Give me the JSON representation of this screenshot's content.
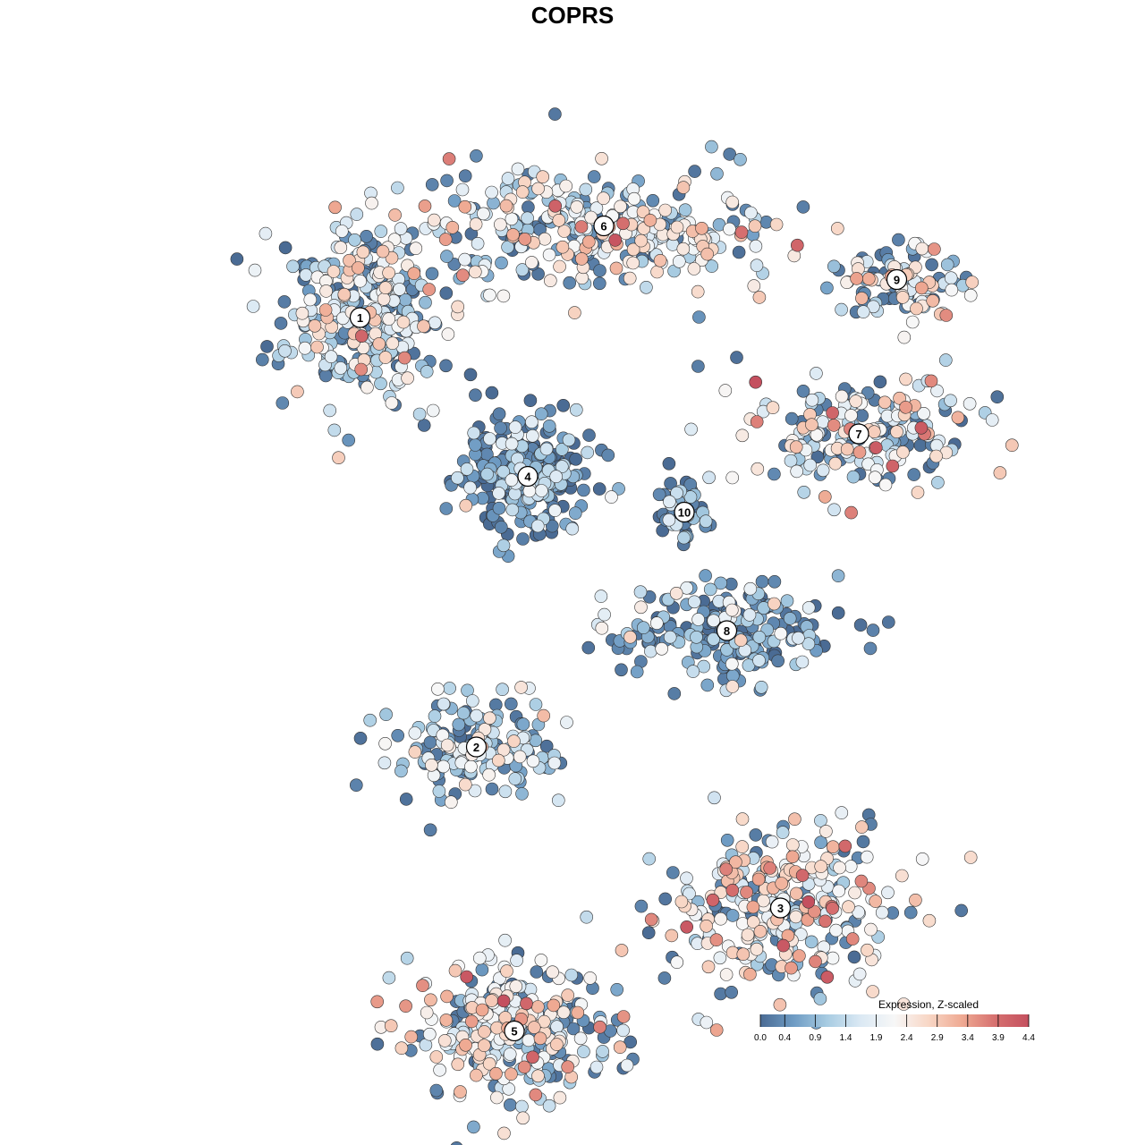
{
  "chart_data": {
    "type": "scatter",
    "title": "COPRS",
    "xlabel": "",
    "ylabel": "",
    "grid": false,
    "color_scale": {
      "title": "Expression, Z-scaled",
      "min": 0.0,
      "max": 4.4,
      "ticks": [
        "0.0",
        "0.4",
        "0.9",
        "1.4",
        "1.9",
        "2.4",
        "2.9",
        "3.4",
        "3.9",
        "4.4"
      ],
      "tick_values": [
        0.0,
        0.4,
        0.9,
        1.4,
        1.9,
        2.4,
        2.9,
        3.4,
        3.9,
        4.4
      ],
      "colors": [
        "#4a6b94",
        "#6f9cc4",
        "#a8cce2",
        "#dbe9f4",
        "#f7f7f7",
        "#f8d7c6",
        "#efaa93",
        "#d6706f",
        "#c4505f"
      ],
      "legend_position": "bottom-right"
    },
    "clusters": [
      {
        "label": "1",
        "x": -9.5,
        "y": 10.2,
        "mean_expression": 1.6
      },
      {
        "label": "2",
        "x": -4.3,
        "y": -9.0,
        "mean_expression": 1.2
      },
      {
        "label": "3",
        "x": 9.3,
        "y": -16.2,
        "mean_expression": 2.2
      },
      {
        "label": "4",
        "x": -2.0,
        "y": 3.1,
        "mean_expression": 0.5
      },
      {
        "label": "5",
        "x": -2.6,
        "y": -21.7,
        "mean_expression": 1.9
      },
      {
        "label": "6",
        "x": 1.4,
        "y": 14.3,
        "mean_expression": 2.0
      },
      {
        "label": "7",
        "x": 12.8,
        "y": 5.0,
        "mean_expression": 1.9
      },
      {
        "label": "8",
        "x": 6.9,
        "y": -3.8,
        "mean_expression": 0.8
      },
      {
        "label": "9",
        "x": 14.5,
        "y": 11.9,
        "mean_expression": 2.1
      },
      {
        "label": "10",
        "x": 5.0,
        "y": 1.5,
        "mean_expression": 0.7
      }
    ]
  }
}
